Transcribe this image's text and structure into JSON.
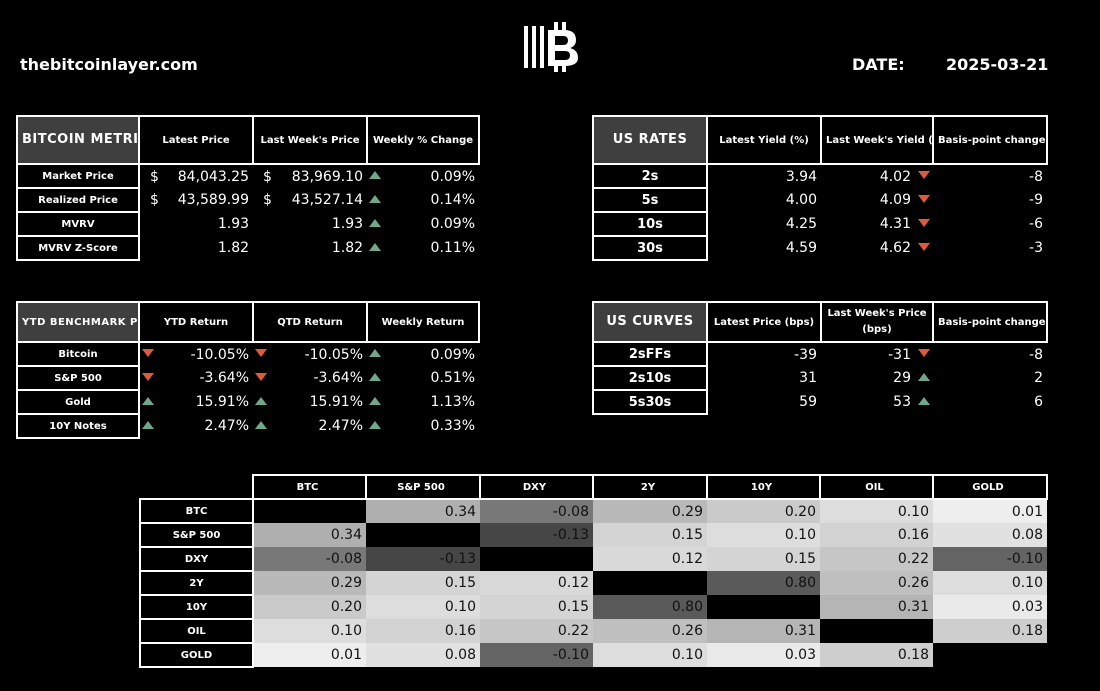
{
  "header": {
    "site": "thebitcoinlayer.com",
    "date_label": "DATE:",
    "date_value": "2025-03-21"
  },
  "bitcoin_metrics": {
    "title": "BITCOIN METRICS",
    "columns": [
      "Latest Price",
      "Last Week's Price",
      "Weekly % Change"
    ],
    "rows": [
      {
        "label": "Market Price",
        "cur1": "$",
        "latest": "84,043.25",
        "cur2": "$",
        "last": "83,969.10",
        "dir": "up",
        "change": "0.09%"
      },
      {
        "label": "Realized Price",
        "cur1": "$",
        "latest": "43,589.99",
        "cur2": "$",
        "last": "43,527.14",
        "dir": "up",
        "change": "0.14%"
      },
      {
        "label": "MVRV",
        "cur1": "",
        "latest": "1.93",
        "cur2": "",
        "last": "1.93",
        "dir": "up",
        "change": "0.09%"
      },
      {
        "label": "MVRV Z-Score",
        "cur1": "",
        "latest": "1.82",
        "cur2": "",
        "last": "1.82",
        "dir": "up",
        "change": "0.11%"
      }
    ]
  },
  "us_rates": {
    "title": "US RATES",
    "columns": [
      "Latest Yield (%)",
      "Last Week's Yield (%)",
      "Basis-point change"
    ],
    "rows": [
      {
        "label": "2s",
        "latest": "3.94",
        "last": "4.02",
        "dir": "down",
        "change": "-8"
      },
      {
        "label": "5s",
        "latest": "4.00",
        "last": "4.09",
        "dir": "down",
        "change": "-9"
      },
      {
        "label": "10s",
        "latest": "4.25",
        "last": "4.31",
        "dir": "down",
        "change": "-6"
      },
      {
        "label": "30s",
        "latest": "4.59",
        "last": "4.62",
        "dir": "down",
        "change": "-3"
      }
    ]
  },
  "ytd_benchmark": {
    "title": "YTD BENCHMARK PERFORMANCE",
    "columns": [
      "YTD Return",
      "QTD Return",
      "Weekly Return"
    ],
    "rows": [
      {
        "label": "Bitcoin",
        "d1": "down",
        "ytd": "-10.05%",
        "d2": "down",
        "qtd": "-10.05%",
        "d3": "up",
        "weekly": "0.09%"
      },
      {
        "label": "S&P 500",
        "d1": "down",
        "ytd": "-3.64%",
        "d2": "down",
        "qtd": "-3.64%",
        "d3": "up",
        "weekly": "0.51%"
      },
      {
        "label": "Gold",
        "d1": "up",
        "ytd": "15.91%",
        "d2": "up",
        "qtd": "15.91%",
        "d3": "up",
        "weekly": "1.13%"
      },
      {
        "label": "10Y Notes",
        "d1": "up",
        "ytd": "2.47%",
        "d2": "up",
        "qtd": "2.47%",
        "d3": "up",
        "weekly": "0.33%"
      }
    ]
  },
  "us_curves": {
    "title": "US CURVES",
    "columns": [
      "Latest Price (bps)",
      "Last Week's Price (bps)",
      "Basis-point change"
    ],
    "rows": [
      {
        "label": "2sFFs",
        "latest": "-39",
        "last": "-31",
        "dir": "down",
        "change": "-8"
      },
      {
        "label": "2s10s",
        "latest": "31",
        "last": "29",
        "dir": "up",
        "change": "2"
      },
      {
        "label": "5s30s",
        "latest": "59",
        "last": "53",
        "dir": "up",
        "change": "6"
      }
    ]
  },
  "correlation": {
    "assets": [
      "BTC",
      "S&P 500",
      "DXY",
      "2Y",
      "10Y",
      "OIL",
      "GOLD"
    ],
    "matrix": [
      [
        null,
        "0.34",
        "-0.08",
        "0.29",
        "0.20",
        "0.10",
        "0.01"
      ],
      [
        "0.34",
        null,
        "-0.13",
        "0.15",
        "0.10",
        "0.16",
        "0.08"
      ],
      [
        "-0.08",
        "-0.13",
        null,
        "0.12",
        "0.15",
        "0.22",
        "-0.10"
      ],
      [
        "0.29",
        "0.15",
        "0.12",
        null,
        "0.80",
        "0.26",
        "0.10"
      ],
      [
        "0.20",
        "0.10",
        "0.15",
        "0.80",
        null,
        "0.31",
        "0.03"
      ],
      [
        "0.10",
        "0.16",
        "0.22",
        "0.26",
        "0.31",
        null,
        "0.18"
      ],
      [
        "0.01",
        "0.08",
        "-0.10",
        "0.10",
        "0.03",
        "0.18",
        null
      ]
    ]
  },
  "colors": {
    "up": "#6fa88a",
    "down": "#e05a3a",
    "background": "#000000"
  }
}
